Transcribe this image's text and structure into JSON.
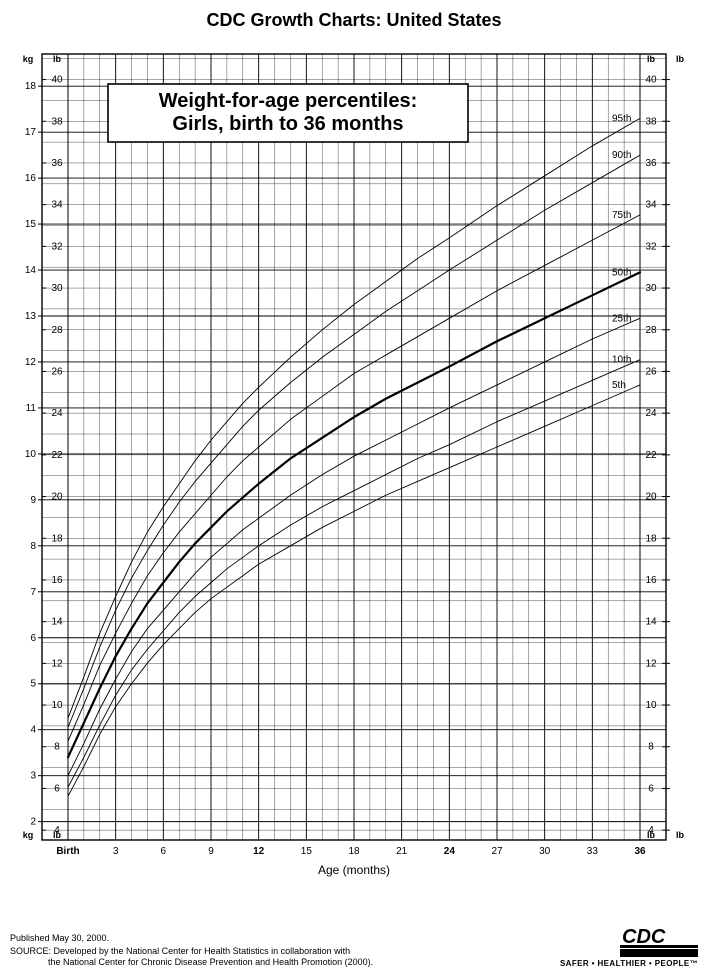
{
  "title": "CDC Growth Charts: United States",
  "subtitle_line1": "Weight-for-age percentiles:",
  "subtitle_line2": "Girls, birth to 36 months",
  "xaxis": {
    "label": "Age (months)",
    "min": 0,
    "max": 36,
    "major_ticks": [
      0,
      3,
      6,
      9,
      12,
      15,
      18,
      21,
      24,
      27,
      30,
      33,
      36
    ],
    "major_labels": [
      "Birth",
      "3",
      "6",
      "9",
      "12",
      "15",
      "18",
      "21",
      "24",
      "27",
      "30",
      "33",
      "36"
    ],
    "bold_labels": [
      "Birth",
      "12",
      "24",
      "36"
    ],
    "minor_step": 1,
    "label_fontsize": 12,
    "tick_fontsize": 10
  },
  "left_axis": {
    "unit": "kg",
    "min": 1.6,
    "max": 18.7,
    "ticks": [
      2,
      3,
      4,
      5,
      6,
      7,
      8,
      9,
      10,
      11,
      12,
      13,
      14,
      15,
      16,
      17,
      18
    ],
    "tick_fontsize": 10
  },
  "right_axis": {
    "unit": "lb",
    "ticks_lb": [
      4,
      6,
      8,
      10,
      12,
      14,
      16,
      18,
      20,
      22,
      24,
      26,
      28,
      30,
      32,
      34,
      36,
      38,
      40
    ],
    "minor_step_lb": 1,
    "tick_fontsize": 10
  },
  "percentiles": [
    {
      "name": "5th",
      "label": "5th",
      "stroke": "#000000",
      "width": 0.9,
      "points_kg": [
        [
          0,
          2.55
        ],
        [
          1,
          3.2
        ],
        [
          2,
          3.9
        ],
        [
          3,
          4.5
        ],
        [
          4,
          5.0
        ],
        [
          5,
          5.45
        ],
        [
          6,
          5.85
        ],
        [
          7,
          6.2
        ],
        [
          8,
          6.55
        ],
        [
          9,
          6.85
        ],
        [
          10,
          7.1
        ],
        [
          11,
          7.35
        ],
        [
          12,
          7.6
        ],
        [
          14,
          8.0
        ],
        [
          16,
          8.4
        ],
        [
          18,
          8.75
        ],
        [
          20,
          9.1
        ],
        [
          22,
          9.4
        ],
        [
          24,
          9.7
        ],
        [
          27,
          10.15
        ],
        [
          30,
          10.6
        ],
        [
          33,
          11.05
        ],
        [
          36,
          11.5
        ]
      ]
    },
    {
      "name": "10th",
      "label": "10th",
      "stroke": "#000000",
      "width": 0.9,
      "points_kg": [
        [
          0,
          2.75
        ],
        [
          1,
          3.4
        ],
        [
          2,
          4.1
        ],
        [
          3,
          4.75
        ],
        [
          4,
          5.3
        ],
        [
          5,
          5.75
        ],
        [
          6,
          6.15
        ],
        [
          7,
          6.55
        ],
        [
          8,
          6.9
        ],
        [
          9,
          7.2
        ],
        [
          10,
          7.5
        ],
        [
          11,
          7.75
        ],
        [
          12,
          8.0
        ],
        [
          14,
          8.45
        ],
        [
          16,
          8.85
        ],
        [
          18,
          9.2
        ],
        [
          20,
          9.55
        ],
        [
          22,
          9.9
        ],
        [
          24,
          10.2
        ],
        [
          27,
          10.7
        ],
        [
          30,
          11.15
        ],
        [
          33,
          11.6
        ],
        [
          36,
          12.05
        ]
      ]
    },
    {
      "name": "25th",
      "label": "25th",
      "stroke": "#000000",
      "width": 0.9,
      "points_kg": [
        [
          0,
          3.0
        ],
        [
          1,
          3.7
        ],
        [
          2,
          4.45
        ],
        [
          3,
          5.1
        ],
        [
          4,
          5.7
        ],
        [
          5,
          6.2
        ],
        [
          6,
          6.6
        ],
        [
          7,
          7.0
        ],
        [
          8,
          7.4
        ],
        [
          9,
          7.75
        ],
        [
          10,
          8.05
        ],
        [
          11,
          8.35
        ],
        [
          12,
          8.6
        ],
        [
          14,
          9.1
        ],
        [
          16,
          9.55
        ],
        [
          18,
          9.95
        ],
        [
          20,
          10.3
        ],
        [
          22,
          10.65
        ],
        [
          24,
          11.0
        ],
        [
          27,
          11.5
        ],
        [
          30,
          12.0
        ],
        [
          33,
          12.5
        ],
        [
          36,
          12.95
        ]
      ]
    },
    {
      "name": "50th",
      "label": "50th",
      "stroke": "#000000",
      "width": 2.2,
      "points_kg": [
        [
          0,
          3.4
        ],
        [
          1,
          4.15
        ],
        [
          2,
          4.9
        ],
        [
          3,
          5.6
        ],
        [
          4,
          6.2
        ],
        [
          5,
          6.75
        ],
        [
          6,
          7.2
        ],
        [
          7,
          7.65
        ],
        [
          8,
          8.05
        ],
        [
          9,
          8.4
        ],
        [
          10,
          8.75
        ],
        [
          11,
          9.05
        ],
        [
          12,
          9.35
        ],
        [
          14,
          9.9
        ],
        [
          16,
          10.35
        ],
        [
          18,
          10.8
        ],
        [
          20,
          11.2
        ],
        [
          22,
          11.55
        ],
        [
          24,
          11.9
        ],
        [
          27,
          12.45
        ],
        [
          30,
          12.95
        ],
        [
          33,
          13.45
        ],
        [
          36,
          13.95
        ]
      ]
    },
    {
      "name": "75th",
      "label": "75th",
      "stroke": "#000000",
      "width": 0.9,
      "points_kg": [
        [
          0,
          3.75
        ],
        [
          1,
          4.55
        ],
        [
          2,
          5.4
        ],
        [
          3,
          6.1
        ],
        [
          4,
          6.75
        ],
        [
          5,
          7.35
        ],
        [
          6,
          7.85
        ],
        [
          7,
          8.3
        ],
        [
          8,
          8.7
        ],
        [
          9,
          9.1
        ],
        [
          10,
          9.5
        ],
        [
          11,
          9.85
        ],
        [
          12,
          10.15
        ],
        [
          14,
          10.75
        ],
        [
          16,
          11.25
        ],
        [
          18,
          11.75
        ],
        [
          20,
          12.15
        ],
        [
          22,
          12.55
        ],
        [
          24,
          12.95
        ],
        [
          27,
          13.55
        ],
        [
          30,
          14.1
        ],
        [
          33,
          14.65
        ],
        [
          36,
          15.2
        ]
      ]
    },
    {
      "name": "90th",
      "label": "90th",
      "stroke": "#000000",
      "width": 0.9,
      "points_kg": [
        [
          0,
          4.05
        ],
        [
          1,
          4.9
        ],
        [
          2,
          5.8
        ],
        [
          3,
          6.6
        ],
        [
          4,
          7.3
        ],
        [
          5,
          7.9
        ],
        [
          6,
          8.45
        ],
        [
          7,
          8.95
        ],
        [
          8,
          9.4
        ],
        [
          9,
          9.8
        ],
        [
          10,
          10.2
        ],
        [
          11,
          10.6
        ],
        [
          12,
          10.95
        ],
        [
          14,
          11.55
        ],
        [
          16,
          12.1
        ],
        [
          18,
          12.6
        ],
        [
          20,
          13.1
        ],
        [
          22,
          13.55
        ],
        [
          24,
          14.0
        ],
        [
          27,
          14.65
        ],
        [
          30,
          15.3
        ],
        [
          33,
          15.9
        ],
        [
          36,
          16.5
        ]
      ]
    },
    {
      "name": "95th",
      "label": "95th",
      "stroke": "#000000",
      "width": 0.9,
      "points_kg": [
        [
          0,
          4.25
        ],
        [
          1,
          5.15
        ],
        [
          2,
          6.1
        ],
        [
          3,
          6.9
        ],
        [
          4,
          7.65
        ],
        [
          5,
          8.3
        ],
        [
          6,
          8.85
        ],
        [
          7,
          9.35
        ],
        [
          8,
          9.85
        ],
        [
          9,
          10.3
        ],
        [
          10,
          10.7
        ],
        [
          11,
          11.1
        ],
        [
          12,
          11.45
        ],
        [
          14,
          12.1
        ],
        [
          16,
          12.7
        ],
        [
          18,
          13.25
        ],
        [
          20,
          13.75
        ],
        [
          22,
          14.25
        ],
        [
          24,
          14.7
        ],
        [
          27,
          15.4
        ],
        [
          30,
          16.05
        ],
        [
          33,
          16.7
        ],
        [
          36,
          17.3
        ]
      ]
    }
  ],
  "chart_style": {
    "plot_bg": "#ffffff",
    "grid_major": "#000000",
    "grid_major_width": 0.9,
    "grid_minor": "#000000",
    "grid_minor_width": 0.35,
    "border_width": 1.4,
    "title_fontsize": 18,
    "subtitle_fontsize": 20,
    "unit_fontsize": 9,
    "curve_label_fontsize": 10
  },
  "footer": {
    "published": "Published May 30, 2000.",
    "source_line1": "SOURCE: Developed by the National Center for Health Statistics in collaboration with",
    "source_line2": "the National Center for Chronic Disease Prevention and Health Promotion (2000).",
    "cdc_tagline": "SAFER • HEALTHIER • PEOPLE",
    "cdc_tm": "™",
    "cdc_logo_text": "CDC"
  }
}
